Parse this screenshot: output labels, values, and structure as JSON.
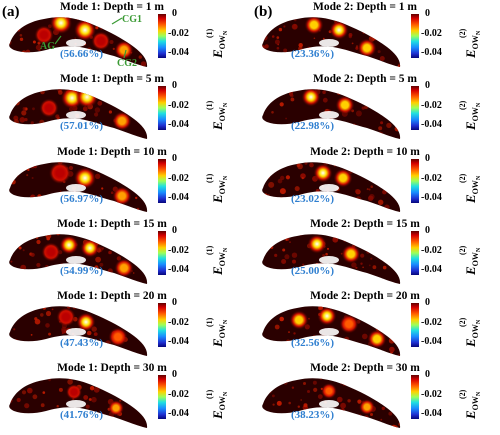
{
  "panels": [
    {
      "label": "(a)",
      "rows": [
        {
          "title": "Mode 1: Depth = 1 m",
          "percent": "(56.66%)",
          "sup": "(1)"
        },
        {
          "title": "Mode 1: Depth = 5 m",
          "percent": "(57.01%)",
          "sup": "(1)"
        },
        {
          "title": "Mode 1: Depth = 10 m",
          "percent": "(56.97%)",
          "sup": "(1)"
        },
        {
          "title": "Mode 1: Depth = 15 m",
          "percent": "(54.99%)",
          "sup": "(1)"
        },
        {
          "title": "Mode 1: Depth = 20 m",
          "percent": "(47.43%)",
          "sup": "(1)"
        },
        {
          "title": "Mode 1: Depth = 30 m",
          "percent": "(41.76%)",
          "sup": "(1)"
        }
      ]
    },
    {
      "label": "(b)",
      "rows": [
        {
          "title": "Mode 2: Depth = 1 m",
          "percent": "(23.36%)",
          "sup": "(2)"
        },
        {
          "title": "Mode 2: Depth = 5 m",
          "percent": "(22.98%)",
          "sup": "(2)"
        },
        {
          "title": "Mode 2: Depth = 10 m",
          "percent": "(23.02%)",
          "sup": "(2)"
        },
        {
          "title": "Mode 2: Depth = 15 m",
          "percent": "(25.00%)",
          "sup": "(2)"
        },
        {
          "title": "Mode 2: Depth = 20 m",
          "percent": "(32.56%)",
          "sup": "(2)"
        },
        {
          "title": "Mode 2: Depth = 30 m",
          "percent": "(38.23%)",
          "sup": "(2)"
        }
      ]
    }
  ],
  "colorbar": {
    "ticks": [
      "0",
      "-0.02",
      "-0.04"
    ],
    "range": [
      -0.045,
      0
    ],
    "colors": [
      "#600000",
      "#d40000",
      "#ff5a00",
      "#ffd000",
      "#9bff5a",
      "#21e0e0",
      "#1a8cff",
      "#1f2fd0",
      "#06067a"
    ]
  },
  "ylabel": {
    "base": "E",
    "sub": "OW",
    "subsub": "N"
  },
  "annotations": {
    "ag": "AG",
    "cg1": "CG1",
    "cg2": "CG2",
    "color": "#3a9a34"
  }
}
